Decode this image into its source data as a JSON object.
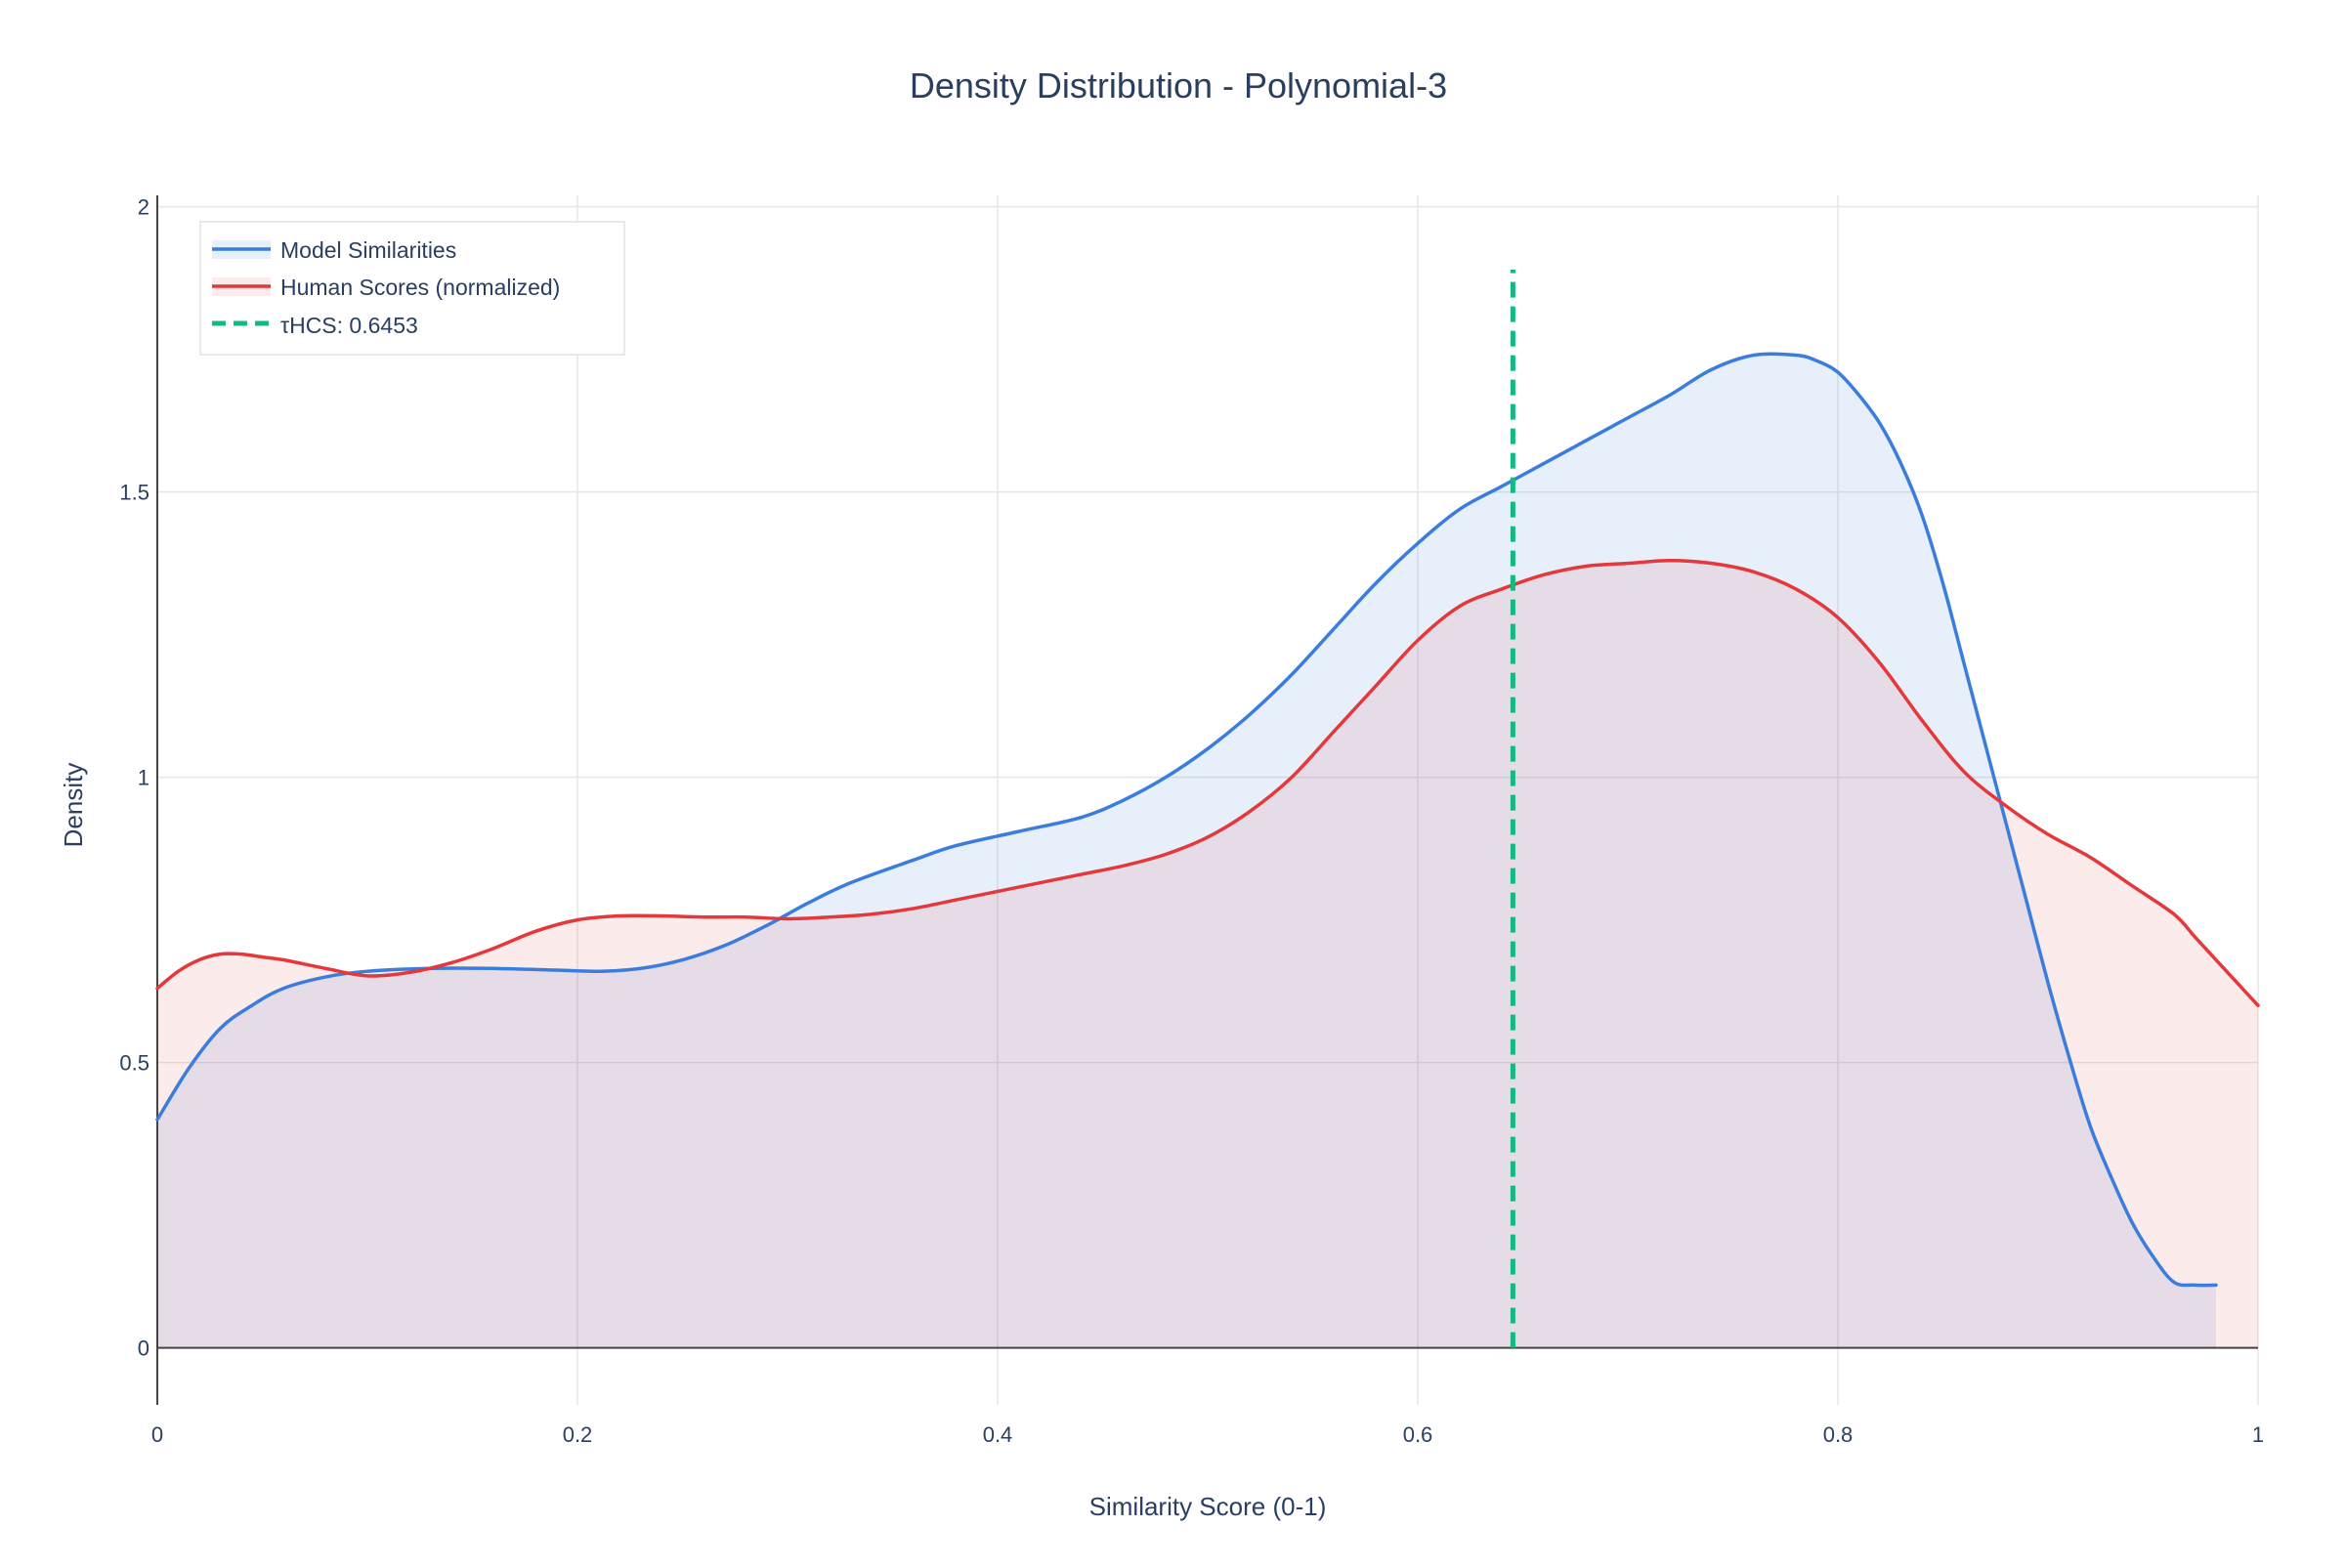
{
  "chart_data": {
    "type": "area",
    "title": "Density Distribution - Polynomial-3",
    "xlabel": "Similarity Score (0-1)",
    "ylabel": "Density",
    "xlim": [
      0,
      1
    ],
    "ylim": [
      -0.1,
      2.02
    ],
    "x_ticks": [
      0,
      0.2,
      0.4,
      0.6,
      0.8,
      1
    ],
    "x_tick_labels": [
      "0",
      "0.2",
      "0.4",
      "0.6",
      "0.8",
      "1"
    ],
    "y_ticks": [
      0,
      0.5,
      1,
      1.5,
      2
    ],
    "y_tick_labels": [
      "0",
      "0.5",
      "1",
      "1.5",
      "2"
    ],
    "grid": true,
    "legend_position": "top-left",
    "series": [
      {
        "name": "Model Similarities",
        "color": "#3b7ddd",
        "fill": "tozeroy",
        "fill_color": "rgba(59,125,221,0.12)",
        "x": [
          0,
          0.015,
          0.03,
          0.045,
          0.06,
          0.08,
          0.1,
          0.13,
          0.16,
          0.19,
          0.21,
          0.23,
          0.25,
          0.27,
          0.29,
          0.31,
          0.33,
          0.36,
          0.38,
          0.41,
          0.44,
          0.46,
          0.48,
          0.5,
          0.52,
          0.54,
          0.56,
          0.58,
          0.6,
          0.62,
          0.64,
          0.66,
          0.68,
          0.7,
          0.72,
          0.74,
          0.76,
          0.78,
          0.79,
          0.8,
          0.81,
          0.82,
          0.83,
          0.84,
          0.85,
          0.86,
          0.87,
          0.88,
          0.89,
          0.9,
          0.91,
          0.92,
          0.93,
          0.94,
          0.95,
          0.96,
          0.97,
          0.98
        ],
        "y": [
          0.4,
          0.49,
          0.56,
          0.6,
          0.63,
          0.65,
          0.66,
          0.665,
          0.665,
          0.662,
          0.66,
          0.665,
          0.68,
          0.705,
          0.74,
          0.78,
          0.815,
          0.855,
          0.88,
          0.905,
          0.93,
          0.96,
          1.0,
          1.05,
          1.11,
          1.18,
          1.26,
          1.34,
          1.41,
          1.47,
          1.51,
          1.55,
          1.59,
          1.63,
          1.67,
          1.715,
          1.74,
          1.74,
          1.73,
          1.71,
          1.67,
          1.62,
          1.55,
          1.46,
          1.34,
          1.2,
          1.06,
          0.92,
          0.78,
          0.64,
          0.51,
          0.39,
          0.3,
          0.22,
          0.16,
          0.115,
          0.11,
          0.11
        ]
      },
      {
        "name": "Human Scores (normalized)",
        "color": "#e5383b",
        "fill": "tozeroy",
        "fill_color": "rgba(229,56,59,0.10)",
        "x": [
          0,
          0.01,
          0.02,
          0.03,
          0.04,
          0.05,
          0.06,
          0.08,
          0.1,
          0.12,
          0.14,
          0.16,
          0.18,
          0.2,
          0.22,
          0.24,
          0.26,
          0.28,
          0.3,
          0.32,
          0.34,
          0.36,
          0.38,
          0.4,
          0.42,
          0.44,
          0.46,
          0.48,
          0.5,
          0.52,
          0.54,
          0.56,
          0.58,
          0.6,
          0.62,
          0.64,
          0.66,
          0.68,
          0.7,
          0.72,
          0.74,
          0.76,
          0.78,
          0.8,
          0.82,
          0.84,
          0.86,
          0.88,
          0.9,
          0.92,
          0.94,
          0.96,
          0.97,
          0.98,
          0.99,
          1.0
        ],
        "y": [
          0.63,
          0.66,
          0.68,
          0.69,
          0.69,
          0.685,
          0.68,
          0.665,
          0.652,
          0.658,
          0.675,
          0.7,
          0.73,
          0.75,
          0.757,
          0.757,
          0.755,
          0.755,
          0.752,
          0.755,
          0.76,
          0.77,
          0.785,
          0.8,
          0.815,
          0.83,
          0.845,
          0.865,
          0.895,
          0.94,
          1.0,
          1.08,
          1.16,
          1.24,
          1.3,
          1.33,
          1.355,
          1.37,
          1.375,
          1.38,
          1.375,
          1.36,
          1.33,
          1.28,
          1.2,
          1.1,
          1.01,
          0.95,
          0.9,
          0.86,
          0.81,
          0.76,
          0.72,
          0.68,
          0.64,
          0.6
        ]
      },
      {
        "name": "τHCS: 0.6453",
        "color": "#12b981",
        "style": "dashed",
        "type": "vline",
        "x": [
          0.6453,
          0.6453
        ],
        "y": [
          0,
          1.89
        ]
      }
    ]
  }
}
